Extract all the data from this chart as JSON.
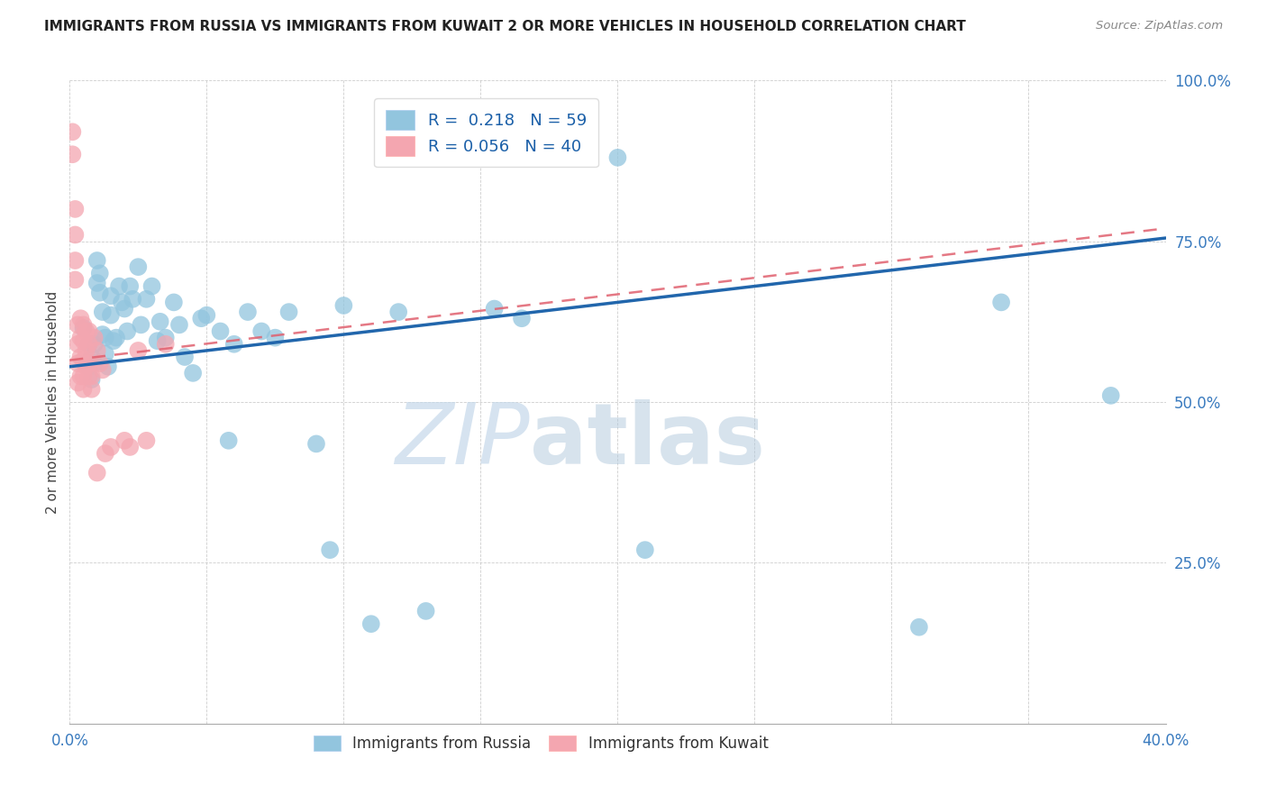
{
  "title": "IMMIGRANTS FROM RUSSIA VS IMMIGRANTS FROM KUWAIT 2 OR MORE VEHICLES IN HOUSEHOLD CORRELATION CHART",
  "source": "Source: ZipAtlas.com",
  "ylabel": "2 or more Vehicles in Household",
  "x_min": 0.0,
  "x_max": 0.4,
  "y_min": 0.0,
  "y_max": 1.0,
  "x_ticks": [
    0.0,
    0.05,
    0.1,
    0.15,
    0.2,
    0.25,
    0.3,
    0.35,
    0.4
  ],
  "y_ticks": [
    0.0,
    0.25,
    0.5,
    0.75,
    1.0
  ],
  "y_tick_labels": [
    "",
    "25.0%",
    "50.0%",
    "75.0%",
    "100.0%"
  ],
  "russia_color": "#92c5de",
  "kuwait_color": "#f4a6b0",
  "russia_line_color": "#2166ac",
  "kuwait_line_color": "#e0606e",
  "russia_R": 0.218,
  "russia_N": 59,
  "kuwait_R": 0.056,
  "kuwait_N": 40,
  "legend_label_russia": "Immigrants from Russia",
  "legend_label_kuwait": "Immigrants from Kuwait",
  "watermark_zip": "ZIP",
  "watermark_atlas": "atlas",
  "russia_x": [
    0.005,
    0.007,
    0.007,
    0.008,
    0.008,
    0.009,
    0.009,
    0.01,
    0.01,
    0.011,
    0.011,
    0.012,
    0.012,
    0.013,
    0.013,
    0.014,
    0.015,
    0.015,
    0.016,
    0.017,
    0.018,
    0.019,
    0.02,
    0.021,
    0.022,
    0.023,
    0.025,
    0.026,
    0.028,
    0.03,
    0.032,
    0.033,
    0.035,
    0.038,
    0.04,
    0.042,
    0.045,
    0.048,
    0.05,
    0.055,
    0.058,
    0.06,
    0.065,
    0.07,
    0.075,
    0.08,
    0.09,
    0.095,
    0.1,
    0.11,
    0.12,
    0.13,
    0.155,
    0.165,
    0.2,
    0.21,
    0.31,
    0.34,
    0.38
  ],
  "russia_y": [
    0.615,
    0.59,
    0.555,
    0.57,
    0.535,
    0.59,
    0.56,
    0.72,
    0.685,
    0.7,
    0.67,
    0.64,
    0.605,
    0.6,
    0.575,
    0.555,
    0.665,
    0.635,
    0.595,
    0.6,
    0.68,
    0.655,
    0.645,
    0.61,
    0.68,
    0.66,
    0.71,
    0.62,
    0.66,
    0.68,
    0.595,
    0.625,
    0.6,
    0.655,
    0.62,
    0.57,
    0.545,
    0.63,
    0.635,
    0.61,
    0.44,
    0.59,
    0.64,
    0.61,
    0.6,
    0.64,
    0.435,
    0.27,
    0.65,
    0.155,
    0.64,
    0.175,
    0.645,
    0.63,
    0.88,
    0.27,
    0.15,
    0.655,
    0.51
  ],
  "kuwait_x": [
    0.001,
    0.001,
    0.002,
    0.002,
    0.002,
    0.002,
    0.003,
    0.003,
    0.003,
    0.003,
    0.004,
    0.004,
    0.004,
    0.004,
    0.005,
    0.005,
    0.005,
    0.005,
    0.005,
    0.006,
    0.006,
    0.006,
    0.007,
    0.007,
    0.007,
    0.007,
    0.008,
    0.008,
    0.009,
    0.01,
    0.01,
    0.011,
    0.012,
    0.013,
    0.015,
    0.02,
    0.022,
    0.025,
    0.028,
    0.035
  ],
  "kuwait_y": [
    0.92,
    0.885,
    0.8,
    0.76,
    0.72,
    0.69,
    0.62,
    0.59,
    0.56,
    0.53,
    0.63,
    0.6,
    0.57,
    0.54,
    0.62,
    0.595,
    0.565,
    0.54,
    0.52,
    0.61,
    0.58,
    0.555,
    0.61,
    0.59,
    0.56,
    0.54,
    0.54,
    0.52,
    0.6,
    0.58,
    0.39,
    0.56,
    0.55,
    0.42,
    0.43,
    0.44,
    0.43,
    0.58,
    0.44,
    0.59
  ]
}
